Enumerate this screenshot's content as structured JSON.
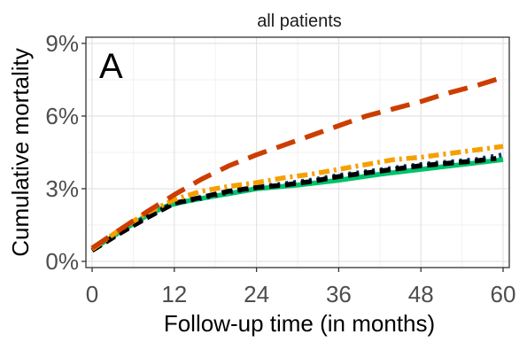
{
  "chart_data": {
    "type": "line",
    "title": "all patients",
    "panel_label": "A",
    "xlabel": "Follow-up time (in months)",
    "ylabel": "Cumulative mortality",
    "xlim": [
      0,
      60
    ],
    "ylim": [
      0,
      9
    ],
    "xticks": [
      0,
      12,
      24,
      36,
      48,
      60
    ],
    "xtick_labels": [
      "0",
      "12",
      "24",
      "36",
      "48",
      "60"
    ],
    "yticks": [
      0,
      3,
      6,
      9
    ],
    "ytick_labels": [
      "0%",
      "3%",
      "6%",
      "9%"
    ],
    "grid": true,
    "legend": "none",
    "series": [
      {
        "color": "#00c26b",
        "style": "solid",
        "x": [
          0,
          4,
          8,
          11,
          14,
          18,
          24,
          30,
          36,
          42,
          48,
          54,
          60
        ],
        "y": [
          0.5,
          1.2,
          1.9,
          2.3,
          2.5,
          2.7,
          3.0,
          3.15,
          3.35,
          3.6,
          3.8,
          4.0,
          4.2
        ]
      },
      {
        "color": "#0b3d73",
        "style": "dotted",
        "x": [
          0,
          4,
          8,
          12,
          16,
          20,
          24,
          28,
          32,
          36,
          40,
          44,
          48,
          52,
          56,
          60
        ],
        "y": [
          0.5,
          1.2,
          1.85,
          2.4,
          2.6,
          2.85,
          3.05,
          3.2,
          3.35,
          3.55,
          3.7,
          3.85,
          4.0,
          4.1,
          4.2,
          4.4
        ]
      },
      {
        "color": "#000000",
        "style": "dashed",
        "x": [
          0,
          4,
          8,
          12,
          16,
          20,
          24,
          28,
          32,
          36,
          40,
          44,
          48,
          52,
          56,
          59
        ],
        "y": [
          0.45,
          1.15,
          1.8,
          2.4,
          2.65,
          2.9,
          3.05,
          3.15,
          3.3,
          3.5,
          3.65,
          3.8,
          3.95,
          4.05,
          4.15,
          4.25
        ]
      },
      {
        "color": "#f5a000",
        "style": "dashdot",
        "x": [
          0,
          4,
          8,
          12,
          16,
          20,
          24,
          28,
          32,
          36,
          40,
          44,
          48,
          52,
          56,
          60
        ],
        "y": [
          0.5,
          1.3,
          2.0,
          2.55,
          2.9,
          3.1,
          3.25,
          3.45,
          3.6,
          3.8,
          4.0,
          4.2,
          4.3,
          4.45,
          4.6,
          4.75
        ]
      },
      {
        "color": "#cc3d00",
        "style": "longdash",
        "x": [
          0,
          4,
          8,
          12,
          16,
          20,
          24,
          28,
          32,
          36,
          40,
          44,
          48,
          52,
          56,
          60
        ],
        "y": [
          0.55,
          1.3,
          2.05,
          2.75,
          3.4,
          3.95,
          4.4,
          4.8,
          5.2,
          5.6,
          6.0,
          6.3,
          6.6,
          6.95,
          7.25,
          7.6
        ]
      }
    ]
  }
}
